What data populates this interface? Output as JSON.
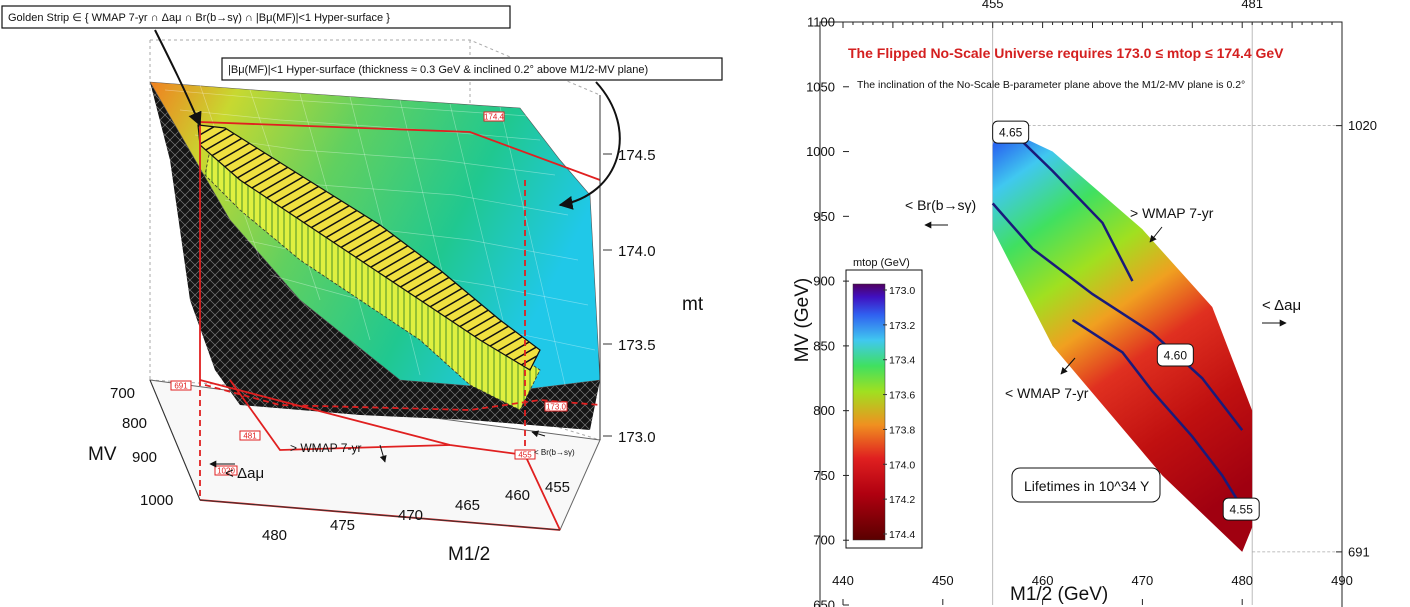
{
  "left_panel": {
    "golden_strip_label": "Golden Strip ∈ { WMAP 7-yr ∩ Δaμ ∩ Br(b→sγ) ∩ |Bμ(MF)|<1 Hyper-surface }",
    "hypersurface_label": "|Bμ(MF)|<1 Hyper-surface (thickness ≈ 0.3 GeV & inclined 0.2° above M1/2-MV plane)",
    "zlabel": "mt",
    "ylabel": "MV",
    "xlabel": "M1/2",
    "z_ticks": [
      "174.5",
      "174.0",
      "173.5",
      "173.0"
    ],
    "y_ticks": [
      "700",
      "800",
      "900",
      "1000"
    ],
    "x_ticks": [
      "480",
      "475",
      "470",
      "465",
      "460",
      "455"
    ],
    "red_tags": [
      "174.4",
      "691",
      "173.0",
      "481",
      "455",
      "1020"
    ],
    "ann_wmap_gt": "> WMAP 7-yr",
    "ann_damu_lt": "< Δaμ",
    "ann_br": "< Br(b→sγ)"
  },
  "chart_data": {
    "type": "heatmap",
    "title": "The Flipped No-Scale Universe requires 173.0 ≤ mtop ≤ 174.4 GeV",
    "subtitle": "The inclination of the No-Scale B-parameter plane above the M1/2-MV plane is 0.2°",
    "xlabel": "M1/2 (GeV)",
    "ylabel": "MV (GeV)",
    "xlim": [
      440,
      490
    ],
    "ylim": [
      650,
      1100
    ],
    "x_ticks": [
      440,
      450,
      460,
      470,
      480,
      490
    ],
    "y_ticks": [
      650,
      700,
      750,
      800,
      850,
      900,
      950,
      1000,
      1050,
      1100
    ],
    "top_ticks": [
      455,
      481
    ],
    "right_ticks": [
      1020,
      691
    ],
    "colorbar": {
      "label": "mtop (GeV)",
      "ticks": [
        "173.0",
        "173.2",
        "173.4",
        "173.6",
        "173.8",
        "174.0",
        "174.2",
        "174.4"
      ],
      "range": [
        173.0,
        174.4
      ]
    },
    "region_outline": [
      [
        455,
        1005
      ],
      [
        455.5,
        1020
      ],
      [
        461,
        1000
      ],
      [
        470,
        940
      ],
      [
        477,
        880
      ],
      [
        481,
        800
      ],
      [
        481,
        710
      ],
      [
        480,
        691
      ],
      [
        472,
        750
      ],
      [
        461,
        850
      ],
      [
        455,
        940
      ]
    ],
    "contours": [
      {
        "label": "4.65",
        "points": [
          [
            457,
            1015
          ],
          [
            461,
            985
          ],
          [
            466,
            945
          ],
          [
            469,
            900
          ]
        ]
      },
      {
        "label": "4.60",
        "points": [
          [
            455,
            960
          ],
          [
            459,
            925
          ],
          [
            465,
            890
          ],
          [
            471,
            860
          ],
          [
            476,
            825
          ],
          [
            480,
            785
          ]
        ]
      },
      {
        "label": "4.55",
        "points": [
          [
            463,
            870
          ],
          [
            468,
            845
          ],
          [
            471,
            815
          ],
          [
            475,
            780
          ],
          [
            478,
            750
          ],
          [
            480,
            725
          ]
        ]
      }
    ],
    "contour_labels": [
      {
        "text": "4.65",
        "x": 456.8,
        "y": 1015
      },
      {
        "text": "4.60",
        "x": 473.3,
        "y": 843
      },
      {
        "text": "4.55",
        "x": 479.9,
        "y": 724
      }
    ],
    "annotations": {
      "br": "< Br(b→sγ)",
      "wmap_gt": "> WMAP 7-yr",
      "wmap_lt": "< WMAP 7-yr",
      "damu": "< Δaμ",
      "lifetimes": "Lifetimes in 10^34 Y"
    },
    "colors": {
      "title": "#d42020",
      "contour": "#1a1a7a"
    }
  }
}
